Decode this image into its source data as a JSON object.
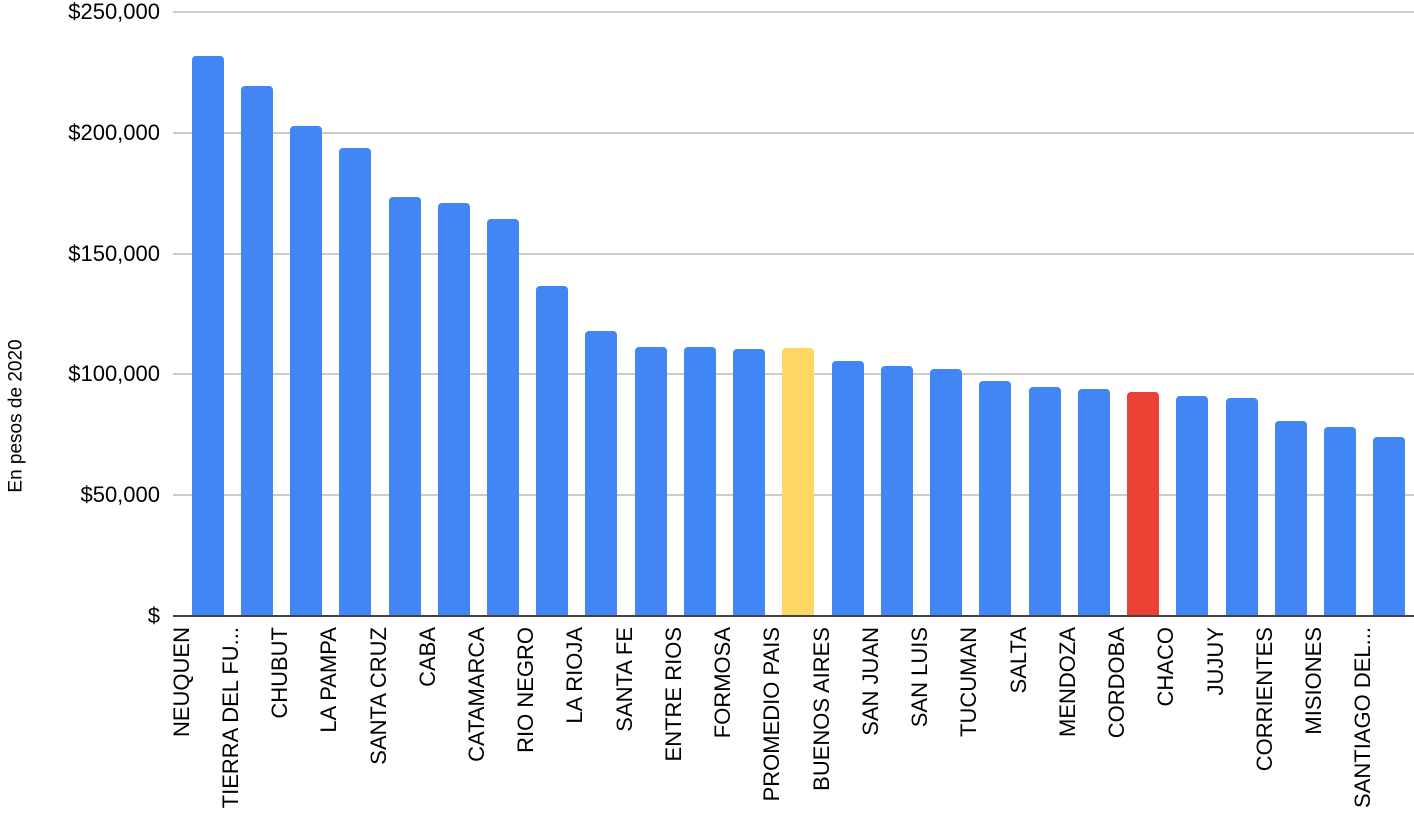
{
  "colors": {
    "background": "#ffffff",
    "gridline": "#cccccc",
    "axis_line": "#424242",
    "text": "#000000"
  },
  "chart_data": {
    "type": "bar",
    "title": "",
    "xlabel": "",
    "ylabel": "En pesos de 2020",
    "ylim": [
      0,
      250000
    ],
    "grid": true,
    "legend": false,
    "y_ticks": [
      {
        "value": 250000,
        "label": "$250,000"
      },
      {
        "value": 200000,
        "label": "$200,000"
      },
      {
        "value": 150000,
        "label": "$150,000"
      },
      {
        "value": 100000,
        "label": "$100,000"
      },
      {
        "value": 50000,
        "label": "$50,000"
      },
      {
        "value": 0,
        "label": "$"
      }
    ],
    "palette": {
      "blue": "#4285F4",
      "yellow": "#FDD663",
      "red": "#EA4335"
    },
    "bars": [
      {
        "label": "NEUQUEN",
        "value": 231500,
        "color": "blue"
      },
      {
        "label": "TIERRA DEL FU...",
        "value": 219000,
        "color": "blue"
      },
      {
        "label": "CHUBUT",
        "value": 202500,
        "color": "blue"
      },
      {
        "label": "LA PAMPA",
        "value": 193500,
        "color": "blue"
      },
      {
        "label": "SANTA CRUZ",
        "value": 173000,
        "color": "blue"
      },
      {
        "label": "CABA",
        "value": 170500,
        "color": "blue"
      },
      {
        "label": "CATAMARCA",
        "value": 164000,
        "color": "blue"
      },
      {
        "label": "RIO NEGRO",
        "value": 136000,
        "color": "blue"
      },
      {
        "label": "LA RIOJA",
        "value": 117500,
        "color": "blue"
      },
      {
        "label": "SANTA FE",
        "value": 111000,
        "color": "blue"
      },
      {
        "label": "ENTRE RIOS",
        "value": 111000,
        "color": "blue"
      },
      {
        "label": "FORMOSA",
        "value": 110000,
        "color": "blue"
      },
      {
        "label": "PROMEDIO PAIS",
        "value": 110500,
        "color": "yellow"
      },
      {
        "label": "BUENOS AIRES",
        "value": 105000,
        "color": "blue"
      },
      {
        "label": "SAN JUAN",
        "value": 103000,
        "color": "blue"
      },
      {
        "label": "SAN LUIS",
        "value": 102000,
        "color": "blue"
      },
      {
        "label": "TUCUMAN",
        "value": 97000,
        "color": "blue"
      },
      {
        "label": "SALTA",
        "value": 94500,
        "color": "blue"
      },
      {
        "label": "MENDOZA",
        "value": 93500,
        "color": "blue"
      },
      {
        "label": "CORDOBA",
        "value": 92500,
        "color": "red"
      },
      {
        "label": "CHACO",
        "value": 90500,
        "color": "blue"
      },
      {
        "label": "JUJUY",
        "value": 90000,
        "color": "blue"
      },
      {
        "label": "CORRIENTES",
        "value": 80500,
        "color": "blue"
      },
      {
        "label": "MISIONES",
        "value": 78000,
        "color": "blue"
      },
      {
        "label": "SANTIAGO DEL...",
        "value": 73500,
        "color": "blue"
      }
    ]
  }
}
